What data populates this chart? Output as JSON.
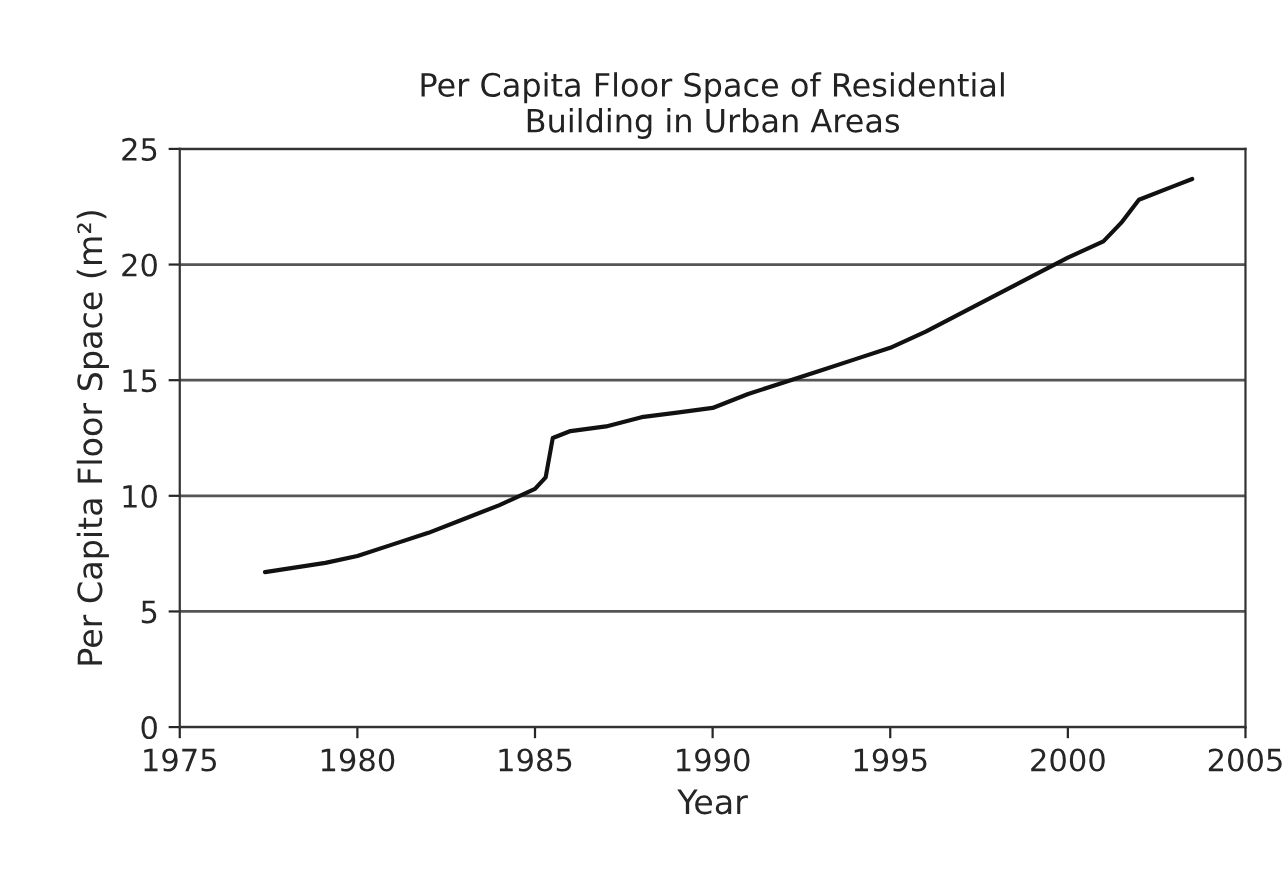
{
  "chart_data": {
    "type": "line",
    "title": "Per Capita Floor Space of Residential\nBuilding in Urban Areas",
    "xlabel": "Year",
    "ylabel": "Per Capita Floor Space (m²)",
    "x": [
      1977.4,
      1979.1,
      1980,
      1981,
      1982,
      1983,
      1984,
      1985,
      1985.3,
      1985.5,
      1986,
      1987,
      1988,
      1989,
      1990,
      1991,
      1992,
      1993,
      1994,
      1995,
      1996,
      1997,
      1998,
      1999,
      2000,
      2001,
      2001.5,
      2002,
      2003,
      2003.5
    ],
    "series": [
      {
        "color": "#111111",
        "values": [
          6.7,
          7.1,
          7.4,
          7.9,
          8.4,
          9.0,
          9.6,
          10.3,
          10.8,
          12.5,
          12.8,
          13.0,
          13.4,
          13.6,
          13.8,
          14.4,
          14.9,
          15.4,
          15.9,
          16.4,
          17.1,
          17.9,
          18.7,
          19.5,
          20.3,
          21.0,
          21.8,
          22.8,
          23.4,
          23.7
        ]
      }
    ],
    "xlim": [
      1975,
      2005
    ],
    "xticks": [
      1975,
      1980,
      1985,
      1990,
      1995,
      2000,
      2005
    ],
    "ylim": [
      0,
      25
    ],
    "yticks": [
      0,
      5,
      10,
      15,
      20,
      25
    ],
    "grid": "y",
    "legend": false,
    "line_style": "solid",
    "marker": "none"
  }
}
